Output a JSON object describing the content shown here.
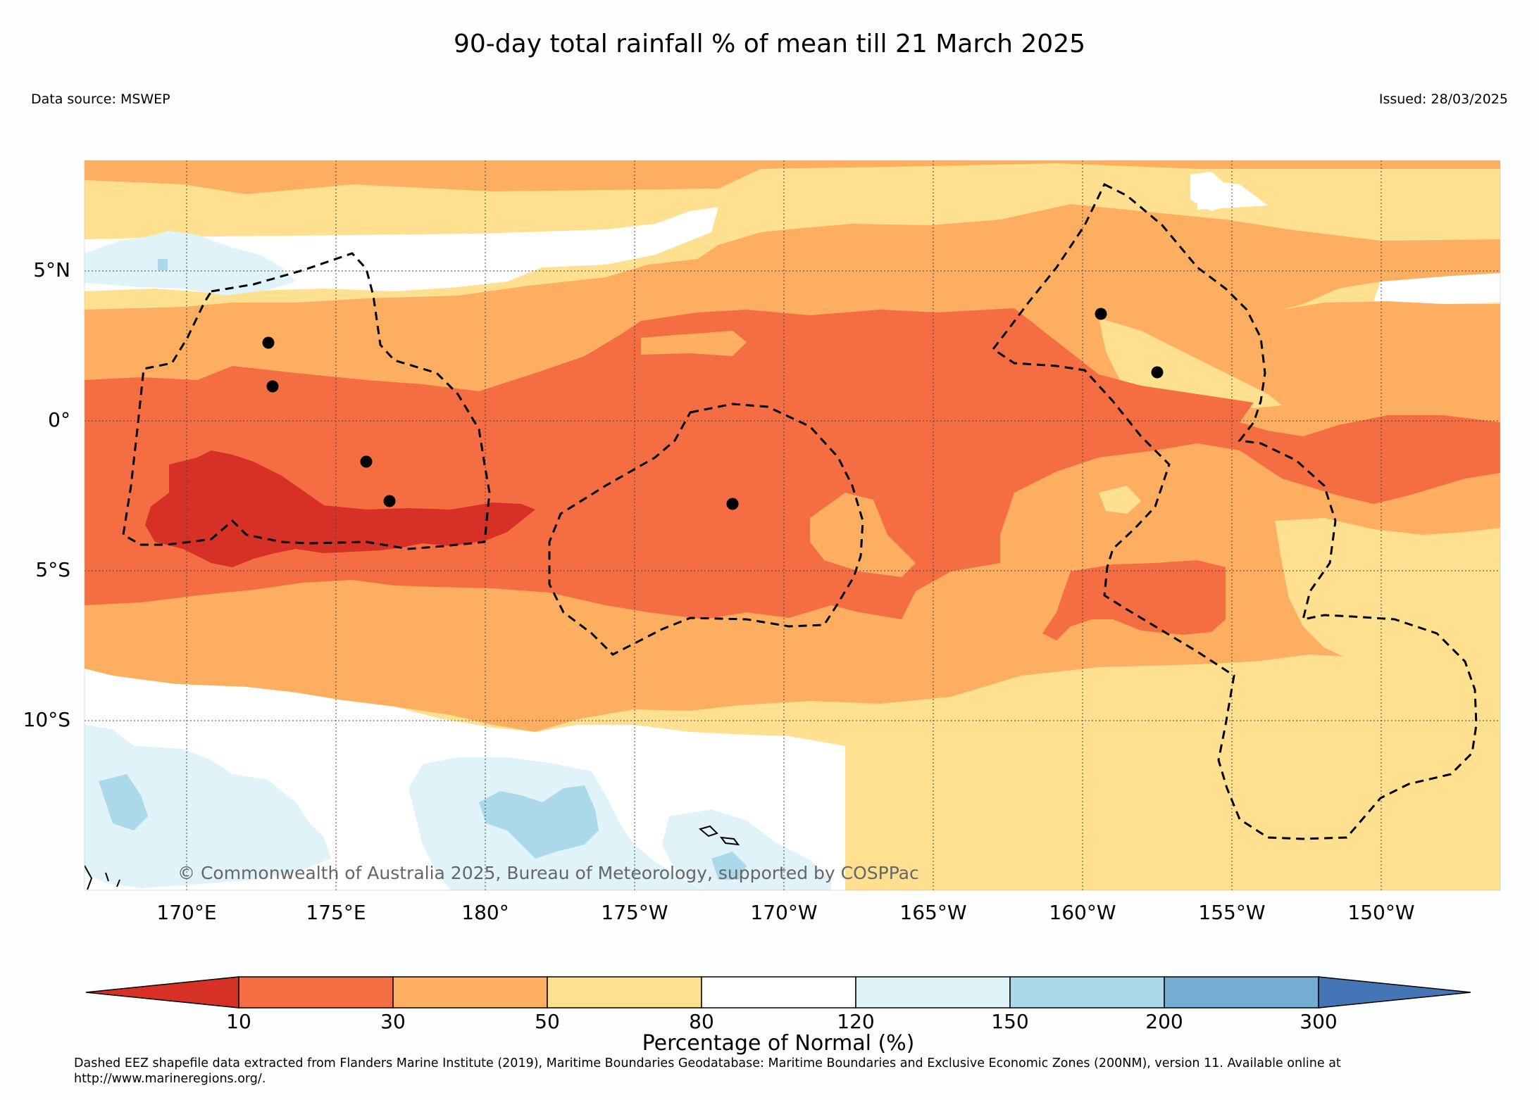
{
  "title": "90-day total rainfall % of mean till 21 March 2025",
  "data_source": "Data source: MSWEP",
  "issued": "Issued: 28/03/2025",
  "copyright": "© Commonwealth of Australia 2025, Bureau of Meteorology, supported by COSPPac",
  "lat_labels": [
    "5°N",
    "0°",
    "5°S",
    "10°S"
  ],
  "lon_labels": [
    "170°E",
    "175°E",
    "180°",
    "175°W",
    "170°W",
    "165°W",
    "160°W",
    "155°W",
    "150°W"
  ],
  "colorbar": {
    "title": "Percentage of Normal (%)",
    "tick_labels": [
      "10",
      "30",
      "50",
      "80",
      "120",
      "150",
      "200",
      "300"
    ],
    "colors": [
      "#d73027",
      "#f46d43",
      "#fdae61",
      "#fee090",
      "#ffffff",
      "#e0f3f8",
      "#abd9e9",
      "#74add1",
      "#4575b4"
    ]
  },
  "footnote": "Dashed EEZ shapefile data extracted from Flanders Marine Institute (2019), Maritime Boundaries Geodatabase: Maritime Boundaries and Exclusive Economic Zones (200NM), version 11. Available online at http://www.marineregions.org/."
}
